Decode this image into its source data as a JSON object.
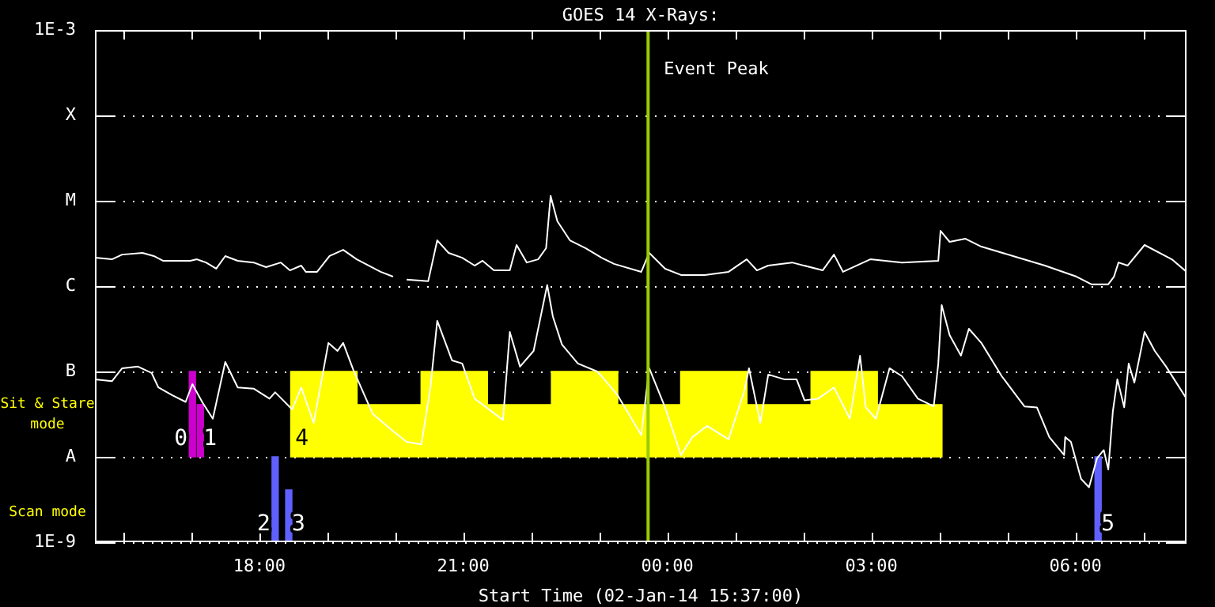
{
  "chart_data": {
    "type": "line",
    "title": "GOES 14 X-Rays:",
    "xlabel": "Start Time (02-Jan-14 15:37:00)",
    "log": true,
    "grid": "y",
    "legend": false,
    "marker": "none",
    "line_style": "solid",
    "xlim": [
      "--01-02T15:35",
      "--01-03T07:38"
    ],
    "xticks": [
      {
        "value": "--01-02T16:00",
        "label": null
      },
      {
        "value": "--01-02T17:00",
        "label": null
      },
      {
        "value": "--01-02T18:00",
        "label": "18:00"
      },
      {
        "value": "--01-02T19:00",
        "label": null
      },
      {
        "value": "--01-02T20:00",
        "label": null
      },
      {
        "value": "--01-02T21:00",
        "label": "21:00"
      },
      {
        "value": "--01-02T22:00",
        "label": null
      },
      {
        "value": "--01-02T23:00",
        "label": null
      },
      {
        "value": "--01-03T00:00",
        "label": "00:00"
      },
      {
        "value": "--01-03T01:00",
        "label": null
      },
      {
        "value": "--01-03T02:00",
        "label": null
      },
      {
        "value": "--01-03T03:00",
        "label": "03:00"
      },
      {
        "value": "--01-03T04:00",
        "label": null
      },
      {
        "value": "--01-03T05:00",
        "label": null
      },
      {
        "value": "--01-03T06:00",
        "label": "06:00"
      },
      {
        "value": "--01-03T07:00",
        "label": null
      }
    ],
    "ylim": [
      1e-09,
      0.001
    ],
    "yticks": [
      {
        "value": 1e-09,
        "label": "1E-9"
      },
      {
        "value": 1e-08,
        "label": "A"
      },
      {
        "value": 1e-07,
        "label": "B"
      },
      {
        "value": 1e-06,
        "label": "C"
      },
      {
        "value": 1e-05,
        "label": "M"
      },
      {
        "value": 0.0001,
        "label": "X"
      },
      {
        "value": 0.001,
        "label": "1E-3"
      }
    ],
    "series": [
      {
        "type": "bar",
        "color": "#ffff00",
        "x": [
          "--01-02T18:57",
          "--01-02T19:54",
          "--01-02T20:52",
          "--01-02T21:49",
          "--01-02T22:47",
          "--01-02T23:44",
          "--01-03T00:41",
          "--01-03T01:39",
          "--01-03T02:36",
          "--01-03T03:33"
        ],
        "base": [
          1e-08,
          1e-08,
          1e-08,
          1e-08,
          1e-08,
          1e-08,
          1e-08,
          1e-08,
          1e-08,
          1e-08
        ],
        "values": [
          9e-08,
          3.1e-08,
          9e-08,
          3.1e-08,
          9e-08,
          3.1e-08,
          9e-08,
          3.1e-08,
          9e-08,
          3.1e-08
        ]
      },
      {
        "type": "bar",
        "color": "#cc00cc",
        "x": [
          "--01-02T17:01",
          "--01-02T17:08"
        ],
        "base": [
          1e-08,
          1e-08
        ],
        "values": [
          9e-08,
          3.1e-08
        ]
      },
      {
        "type": "bar",
        "color": "#6060ff",
        "x": [
          "--01-02T18:14",
          "--01-02T18:26",
          "--01-03T06:20"
        ],
        "values": [
          1e-08,
          4.1e-09,
          1e-08
        ]
      },
      {
        "color": "#ffffff",
        "x": [
          "--01-02T15:35",
          "--01-02T15:50",
          "--01-02T15:59",
          "--01-02T16:17",
          "--01-02T16:27",
          "--01-02T16:35",
          "--01-02T16:59",
          "--01-02T17:05",
          "--01-02T17:13",
          "--01-02T17:22",
          "--01-02T17:30",
          "--01-02T17:41",
          "--01-02T17:55",
          "--01-02T18:06",
          "--01-02T18:19",
          "--01-02T18:27",
          "--01-02T18:37",
          "--01-02T18:41",
          "--01-02T18:51",
          "--01-02T19:02",
          "--01-02T19:14",
          "--01-02T19:26",
          "--01-02T19:47",
          "--01-02T19:58",
          "--01-02T20:04",
          "--01-02T20:10",
          "--01-02T20:29",
          "--01-02T20:37",
          "--01-02T20:47",
          "--01-02T20:59",
          "--01-02T21:10",
          "--01-02T21:17",
          "--01-02T21:27",
          "--01-02T21:41",
          "--01-02T21:47",
          "--01-02T21:56",
          "--01-02T22:06",
          "--01-02T22:13",
          "--01-02T22:17",
          "--01-02T22:23",
          "--01-02T22:34",
          "--01-02T22:48",
          "--01-02T23:02",
          "--01-02T23:13",
          "--01-02T23:37",
          "--01-02T23:44",
          "--01-02T23:58",
          "--01-03T00:12",
          "--01-03T00:33",
          "--01-03T00:54",
          "--01-03T01:10",
          "--01-03T01:19",
          "--01-03T01:29",
          "--01-03T01:50",
          "--01-03T02:17",
          "--01-03T02:27",
          "--01-03T02:35",
          "--01-03T02:59",
          "--01-03T03:27",
          "--01-03T03:59",
          "--01-03T04:01",
          "--01-03T04:09",
          "--01-03T04:23",
          "--01-03T04:37",
          "--01-03T05:05",
          "--01-03T05:33",
          "--01-03T06:01",
          "--01-03T06:14",
          "--01-03T06:29",
          "--01-03T06:34",
          "--01-03T06:38",
          "--01-03T06:46",
          "--01-03T07:01",
          "--01-03T07:25",
          "--01-03T07:38"
        ],
        "values": [
          2.15e-06,
          2.06e-06,
          2.34e-06,
          2.45e-06,
          2.25e-06,
          1.98e-06,
          1.98e-06,
          2.06e-06,
          1.89e-06,
          1.6e-06,
          2.25e-06,
          1.98e-06,
          1.89e-06,
          1.67e-06,
          1.89e-06,
          1.53e-06,
          1.74e-06,
          1.47e-06,
          1.47e-06,
          2.25e-06,
          2.66e-06,
          2.06e-06,
          1.47e-06,
          1.29e-06,
          null,
          1.19e-06,
          1.14e-06,
          3.44e-06,
          2.45e-06,
          2.15e-06,
          1.74e-06,
          1.98e-06,
          1.53e-06,
          1.53e-06,
          3.03e-06,
          1.89e-06,
          2.06e-06,
          2.78e-06,
          1.14e-05,
          5.74e-06,
          3.44e-06,
          2.78e-06,
          2.15e-06,
          1.82e-06,
          1.47e-06,
          2.45e-06,
          1.6e-06,
          1.35e-06,
          1.35e-06,
          1.47e-06,
          2.06e-06,
          1.53e-06,
          1.74e-06,
          1.89e-06,
          1.53e-06,
          2.34e-06,
          1.47e-06,
          2.06e-06,
          1.89e-06,
          1.98e-06,
          4.44e-06,
          3.3e-06,
          3.59e-06,
          2.9e-06,
          2.25e-06,
          1.74e-06,
          1.29e-06,
          1.05e-06,
          1.05e-06,
          1.29e-06,
          1.89e-06,
          1.74e-06,
          3.03e-06,
          2.06e-06,
          1.47e-06
        ]
      },
      {
        "color": "#ffffff",
        "x": [
          "--01-02T15:35",
          "--01-02T15:50",
          "--01-02T15:59",
          "--01-02T16:13",
          "--01-02T16:25",
          "--01-02T16:31",
          "--01-02T16:43",
          "--01-02T16:55",
          "--01-02T17:01",
          "--01-02T17:10",
          "--01-02T17:19",
          "--01-02T17:30",
          "--01-02T17:41",
          "--01-02T17:55",
          "--01-02T18:09",
          "--01-02T18:14",
          "--01-02T18:29",
          "--01-02T18:37",
          "--01-02T18:48",
          "--01-02T19:01",
          "--01-02T19:09",
          "--01-02T19:14",
          "--01-02T19:23",
          "--01-02T19:40",
          "--01-02T19:58",
          "--01-02T20:10",
          "--01-02T20:23",
          "--01-02T20:31",
          "--01-02T20:37",
          "--01-02T20:50",
          "--01-02T20:59",
          "--01-02T21:10",
          "--01-02T21:25",
          "--01-02T21:35",
          "--01-02T21:41",
          "--01-02T21:50",
          "--01-02T22:02",
          "--01-02T22:14",
          "--01-02T22:19",
          "--01-02T22:27",
          "--01-02T22:41",
          "--01-02T22:58",
          "--01-02T23:02",
          "--01-02T23:16",
          "--01-02T23:20",
          "--01-02T23:37",
          "--01-02T23:44",
          "--01-02T23:58",
          "--01-03T00:12",
          "--01-03T00:22",
          "--01-03T00:35",
          "--01-03T00:54",
          "--01-03T01:08",
          "--01-03T01:12",
          "--01-03T01:22",
          "--01-03T01:29",
          "--01-03T01:43",
          "--01-03T01:54",
          "--01-03T02:01",
          "--01-03T02:13",
          "--01-03T02:27",
          "--01-03T02:41",
          "--01-03T02:50",
          "--01-03T02:55",
          "--01-03T03:04",
          "--01-03T03:16",
          "--01-03T03:27",
          "--01-03T03:41",
          "--01-03T03:55",
          "--01-03T03:59",
          "--01-03T04:02",
          "--01-03T04:09",
          "--01-03T04:19",
          "--01-03T04:26",
          "--01-03T04:37",
          "--01-03T04:55",
          "--01-03T05:15",
          "--01-03T05:26",
          "--01-03T05:37",
          "--01-03T05:50",
          "--01-03T05:51",
          "--01-03T05:56",
          "--01-03T06:05",
          "--01-03T06:12",
          "--01-03T06:19",
          "--01-03T06:25",
          "--01-03T06:29",
          "--01-03T06:33",
          "--01-03T06:37",
          "--01-03T06:43",
          "--01-03T06:47",
          "--01-03T06:52",
          "--01-03T07:01",
          "--01-03T07:10",
          "--01-03T07:20",
          "--01-03T07:38"
        ],
        "values": [
          8.1e-08,
          7.7e-08,
          1.09e-07,
          1.14e-07,
          9.6e-08,
          6.5e-08,
          5.3e-08,
          4.4e-08,
          7.1e-08,
          4.3e-08,
          2.8e-08,
          1.29e-07,
          6.5e-08,
          6.3e-08,
          4.8e-08,
          5.7e-08,
          3.6e-08,
          6.5e-08,
          2.5e-08,
          2.16e-07,
          1.74e-07,
          2.16e-07,
          1.04e-07,
          3.2e-08,
          2e-08,
          1.5e-08,
          1.4e-08,
          6.5e-08,
          3.92e-07,
          1.35e-07,
          1.24e-07,
          4.8e-08,
          3.4e-08,
          2.7e-08,
          2.9e-07,
          1.14e-07,
          1.74e-07,
          1.03e-06,
          4.4e-07,
          2.07e-07,
          1.24e-07,
          1e-07,
          8.8e-08,
          5.3e-08,
          4.3e-08,
          1.8e-08,
          1.09e-07,
          3.8e-08,
          1.05e-08,
          1.7e-08,
          2.3e-08,
          1.6e-08,
          6e-08,
          1.09e-07,
          2.5e-08,
          9.2e-08,
          8.1e-08,
          8.1e-08,
          4.6e-08,
          4.8e-08,
          6.5e-08,
          2.8e-08,
          1.53e-07,
          3.8e-08,
          2.8e-08,
          1.09e-07,
          8.8e-08,
          4.8e-08,
          3.9e-08,
          1.24e-07,
          5.99e-07,
          2.67e-07,
          1.53e-07,
          3.16e-07,
          2.16e-07,
          8.8e-08,
          3.9e-08,
          3.8e-08,
          1.7e-08,
          1.05e-08,
          1.7e-08,
          1.5e-08,
          5.5e-09,
          4.4e-09,
          9.6e-09,
          1.2e-08,
          7.1e-09,
          3.4e-08,
          8.1e-08,
          3.8e-08,
          1.24e-07,
          7.4e-08,
          2.9e-07,
          1.74e-07,
          1.14e-07,
          4.8e-08
        ]
      }
    ],
    "ref_lines": [
      {
        "axis": "x",
        "value": "--01-02T23:43",
        "label": "Event Peak",
        "color": "#99cc00"
      }
    ],
    "annotations": [
      "Sit & Stare mode",
      "Scan mode",
      {
        "text": "0",
        "x": "--01-02T17:01",
        "y": 1e-08
      },
      {
        "text": "1",
        "x": "--01-02T17:08",
        "y": 1e-08
      },
      {
        "text": "2",
        "x": "--01-02T18:14",
        "y": 1e-09
      },
      {
        "text": "3",
        "x": "--01-02T18:26",
        "y": 1e-09
      },
      {
        "text": "4",
        "x": "--01-02T18:29",
        "y": 1e-08
      },
      {
        "text": "5",
        "x": "--01-03T06:20",
        "y": 1e-09
      }
    ]
  }
}
